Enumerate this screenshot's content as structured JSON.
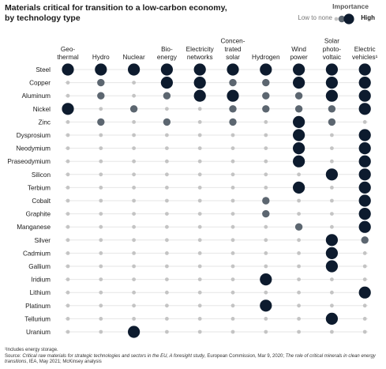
{
  "title_lines": [
    "Materials critical for transition to a low-carbon economy,",
    "by technology type"
  ],
  "legend": {
    "title": "Importance",
    "low": "Low to none",
    "high": "High"
  },
  "chart_data": {
    "type": "table",
    "encoding": "dot size and color show importance level: 0 = low to none, 1 = medium, 2 = high",
    "columns": [
      {
        "lines": [
          "Geo-",
          "thermal"
        ]
      },
      {
        "lines": [
          "Hydro"
        ]
      },
      {
        "lines": [
          "Nuclear"
        ]
      },
      {
        "lines": [
          "Bio-",
          "energy"
        ]
      },
      {
        "lines": [
          "Electricity",
          "networks"
        ]
      },
      {
        "lines": [
          "Concen-",
          "trated",
          "solar"
        ]
      },
      {
        "lines": [
          "Hydrogen"
        ]
      },
      {
        "lines": [
          "Wind",
          "power"
        ]
      },
      {
        "lines": [
          "Solar",
          "photo-",
          "voltaic"
        ]
      },
      {
        "lines": [
          "Electric",
          "vehicles¹"
        ]
      }
    ],
    "rows": [
      {
        "material": "Steel",
        "levels": [
          2,
          2,
          2,
          2,
          2,
          2,
          2,
          2,
          2,
          2
        ]
      },
      {
        "material": "Copper",
        "levels": [
          0,
          1,
          0,
          2,
          2,
          1,
          1,
          2,
          2,
          2
        ]
      },
      {
        "material": "Aluminum",
        "levels": [
          0,
          1,
          0,
          1,
          2,
          2,
          1,
          1,
          2,
          2
        ]
      },
      {
        "material": "Nickel",
        "levels": [
          2,
          0,
          1,
          0,
          0,
          1,
          1,
          1,
          1,
          2
        ]
      },
      {
        "material": "Zinc",
        "levels": [
          0,
          1,
          0,
          1,
          0,
          1,
          0,
          2,
          1,
          0
        ]
      },
      {
        "material": "Dysprosium",
        "levels": [
          0,
          0,
          0,
          0,
          0,
          0,
          0,
          2,
          0,
          2
        ]
      },
      {
        "material": "Neodymium",
        "levels": [
          0,
          0,
          0,
          0,
          0,
          0,
          0,
          2,
          0,
          2
        ]
      },
      {
        "material": "Praseodymium",
        "levels": [
          0,
          0,
          0,
          0,
          0,
          0,
          0,
          2,
          0,
          2
        ]
      },
      {
        "material": "Silicon",
        "levels": [
          0,
          0,
          0,
          0,
          0,
          0,
          0,
          0,
          2,
          2
        ]
      },
      {
        "material": "Terbium",
        "levels": [
          0,
          0,
          0,
          0,
          0,
          0,
          0,
          2,
          0,
          2
        ]
      },
      {
        "material": "Cobalt",
        "levels": [
          0,
          0,
          0,
          0,
          0,
          0,
          1,
          0,
          0,
          2
        ]
      },
      {
        "material": "Graphite",
        "levels": [
          0,
          0,
          0,
          0,
          0,
          0,
          1,
          0,
          0,
          2
        ]
      },
      {
        "material": "Manganese",
        "levels": [
          0,
          0,
          0,
          0,
          0,
          0,
          0,
          1,
          0,
          2
        ]
      },
      {
        "material": "Silver",
        "levels": [
          0,
          0,
          0,
          0,
          0,
          0,
          0,
          0,
          2,
          1
        ]
      },
      {
        "material": "Cadmium",
        "levels": [
          0,
          0,
          0,
          0,
          0,
          0,
          0,
          0,
          2,
          0
        ]
      },
      {
        "material": "Gallium",
        "levels": [
          0,
          0,
          0,
          0,
          0,
          0,
          0,
          0,
          2,
          0
        ]
      },
      {
        "material": "Iridium",
        "levels": [
          0,
          0,
          0,
          0,
          0,
          0,
          2,
          0,
          0,
          0
        ]
      },
      {
        "material": "Lithium",
        "levels": [
          0,
          0,
          0,
          0,
          0,
          0,
          0,
          0,
          0,
          2
        ]
      },
      {
        "material": "Platinum",
        "levels": [
          0,
          0,
          0,
          0,
          0,
          0,
          2,
          0,
          0,
          0
        ]
      },
      {
        "material": "Tellurium",
        "levels": [
          0,
          0,
          0,
          0,
          0,
          0,
          0,
          0,
          2,
          0
        ]
      },
      {
        "material": "Uranium",
        "levels": [
          0,
          0,
          2,
          0,
          0,
          0,
          0,
          0,
          0,
          0
        ]
      }
    ],
    "colors": {
      "low": "#c4c4c4",
      "medium": "#5c6670",
      "high": "#0d1b2e",
      "line": "#e6e6e6"
    }
  },
  "footer": {
    "note": "¹Includes energy storage.",
    "source_prefix": "Source: ",
    "source_title_1": "Critical raw materials for strategic technologies and sectors in the EU, A foresight study",
    "source_mid": ", European Commission, Mar 9, 2020; ",
    "source_title_2": "The role of critical minerals in clean energy transitions",
    "source_end": ", IEA, May 2021; McKinsey analysis"
  }
}
